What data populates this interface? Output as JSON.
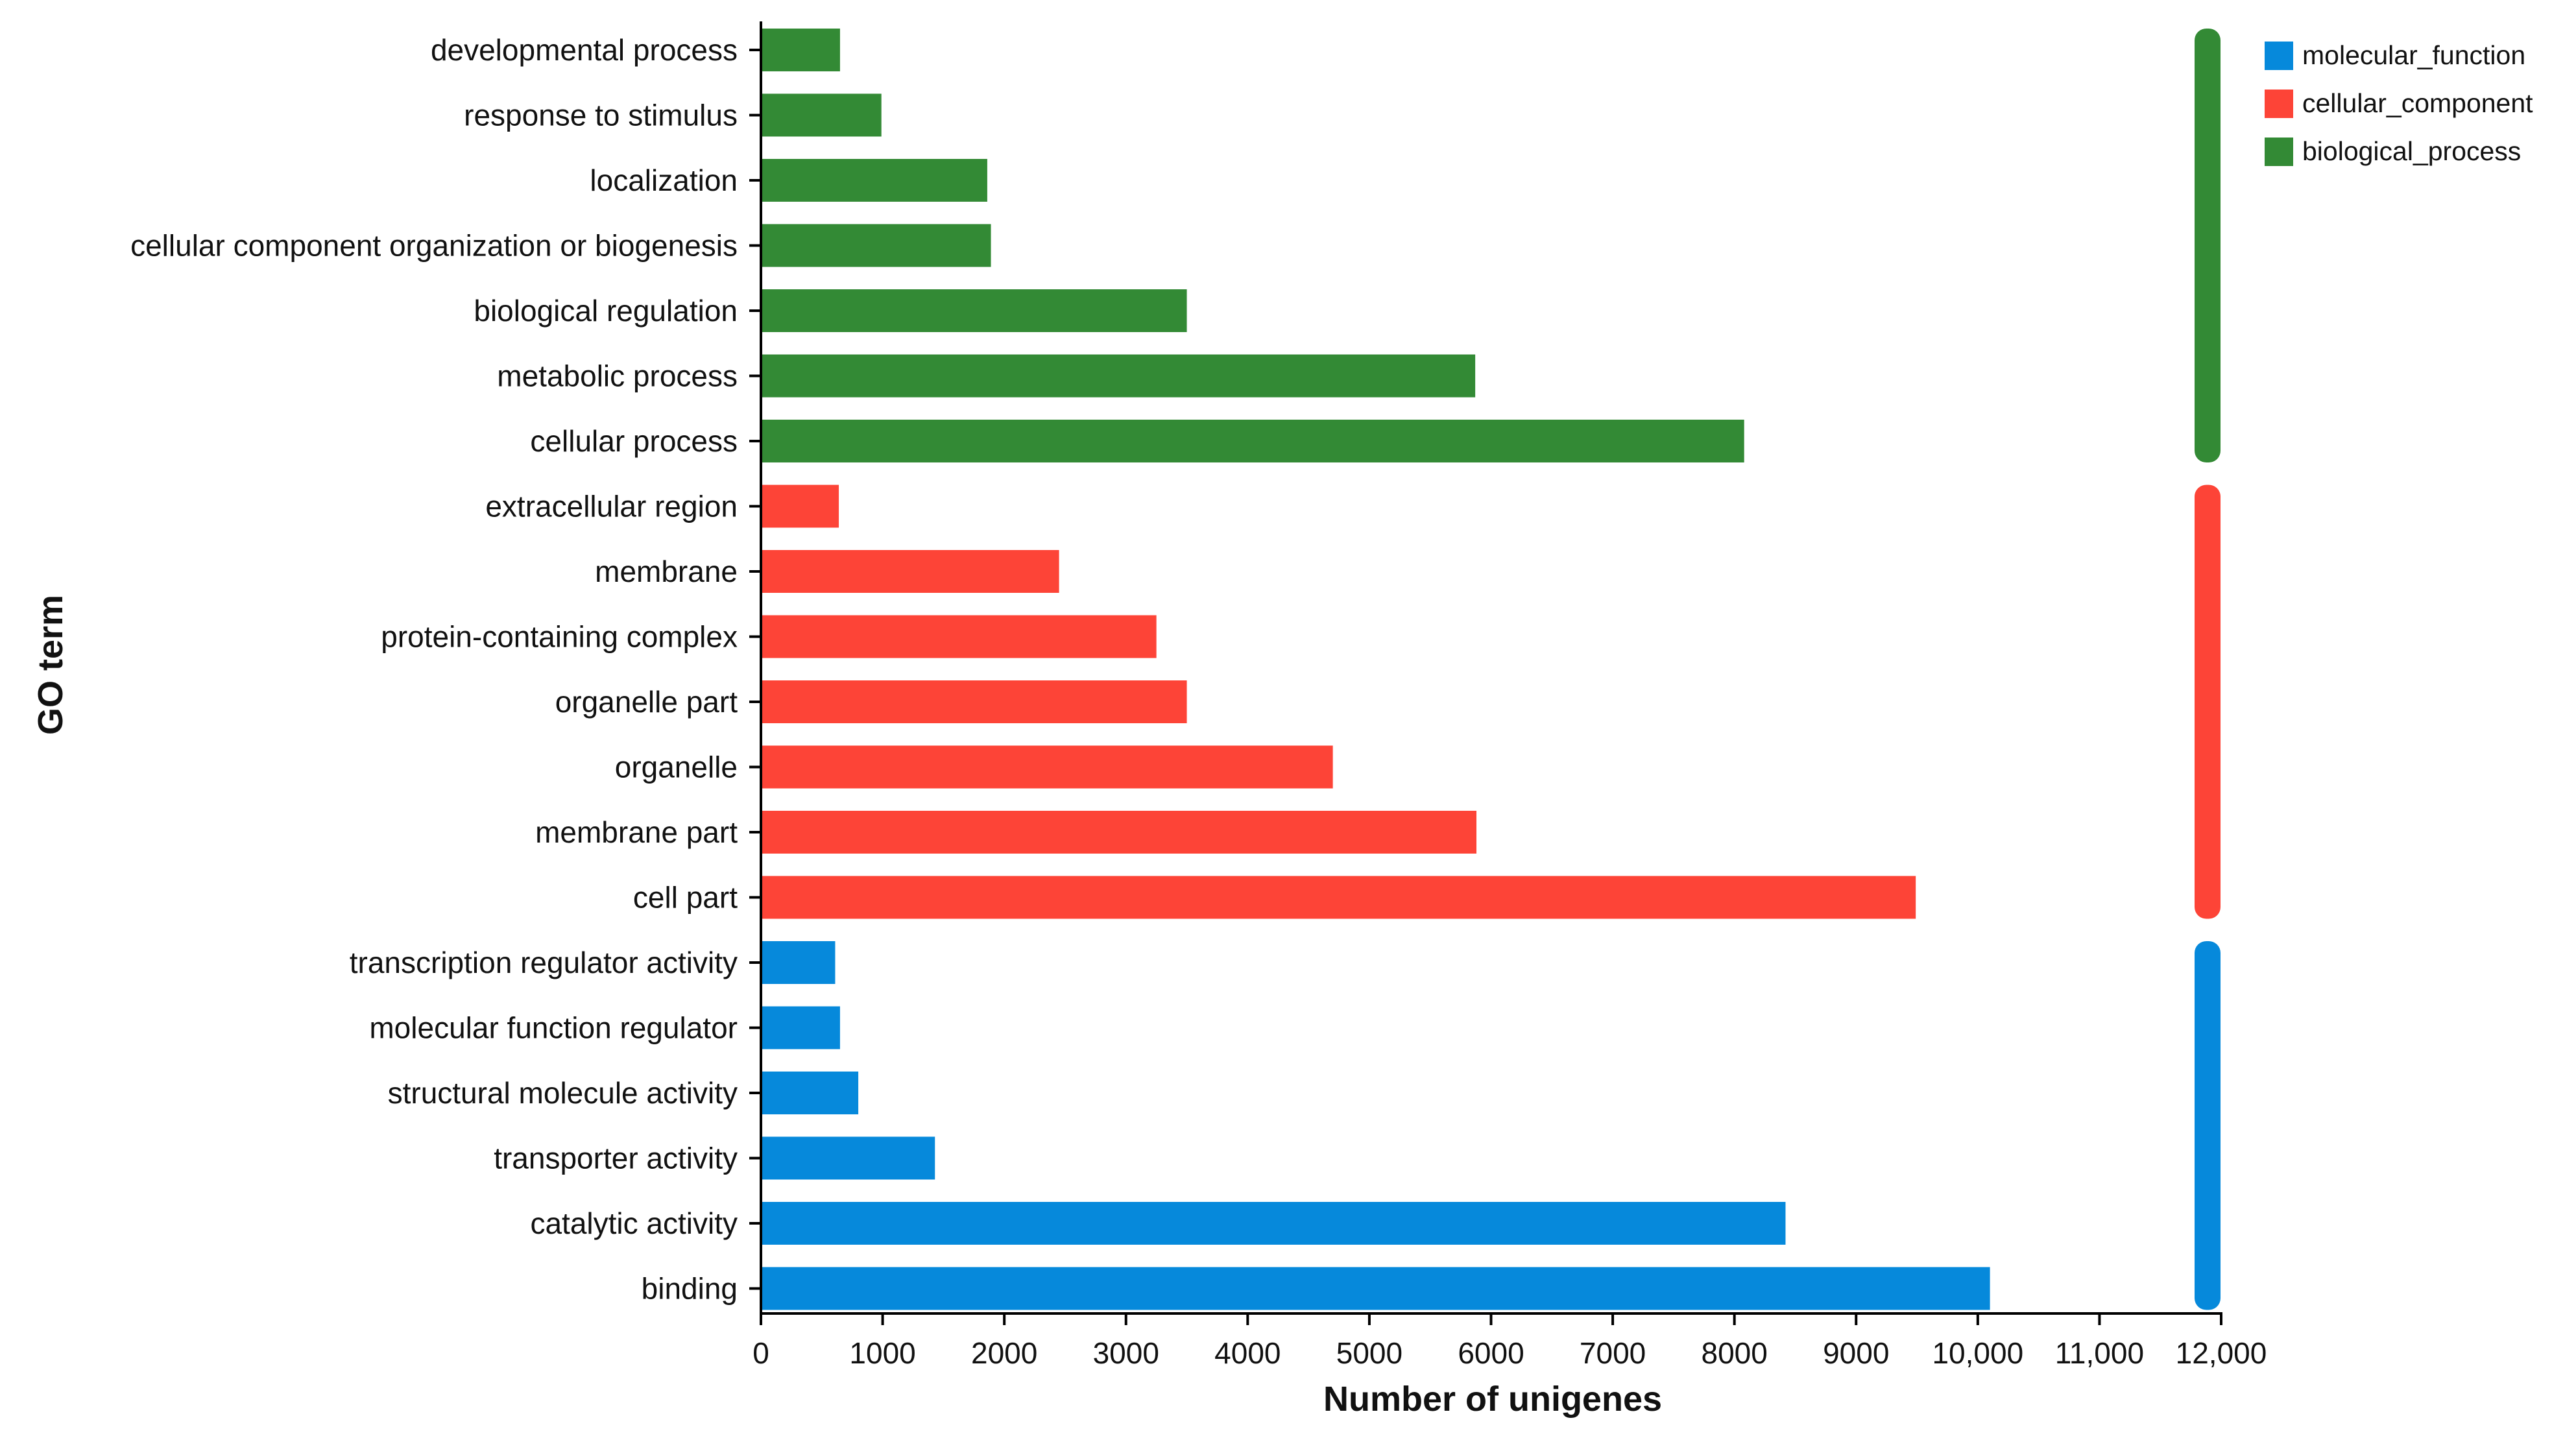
{
  "chart_data": {
    "type": "bar",
    "orientation": "horizontal",
    "title": "",
    "xlabel": "Number of unigenes",
    "ylabel": "GO term",
    "xlim": [
      0,
      12000
    ],
    "xticks": [
      0,
      1000,
      2000,
      3000,
      4000,
      5000,
      6000,
      7000,
      8000,
      9000,
      10000,
      11000,
      12000
    ],
    "xtick_labels": [
      "0",
      "1000",
      "2000",
      "3000",
      "4000",
      "5000",
      "6000",
      "7000",
      "8000",
      "9000",
      "10,000",
      "11,000",
      "12,000"
    ],
    "grid": false,
    "legend_position": "top-right",
    "groups": [
      {
        "name": "biological_process",
        "color": "#338a35",
        "categories": [
          "developmental process",
          "response to stimulus",
          "localization",
          "cellular component organization or biogenesis",
          "biological regulation",
          "metabolic process",
          "cellular process"
        ],
        "values": [
          650,
          990,
          1860,
          1890,
          3500,
          5870,
          8080
        ]
      },
      {
        "name": "cellular_component",
        "color": "#fd4437",
        "categories": [
          "extracellular region",
          "membrane",
          "protein-containing complex",
          "organelle part",
          "organelle",
          "membrane part",
          "cell part"
        ],
        "values": [
          640,
          2450,
          3250,
          3500,
          4700,
          5880,
          9490
        ]
      },
      {
        "name": "molecular_function",
        "color": "#0689db",
        "categories": [
          "transcription regulator activity",
          "molecular function regulator",
          "structural molecule activity",
          "transporter activity",
          "catalytic activity",
          "binding"
        ],
        "values": [
          610,
          650,
          800,
          1430,
          8420,
          10100
        ]
      }
    ],
    "legend": [
      {
        "label": "molecular_function",
        "color": "#0689db"
      },
      {
        "label": "cellular_component",
        "color": "#fd4437"
      },
      {
        "label": "biological_process",
        "color": "#338a35"
      }
    ]
  }
}
